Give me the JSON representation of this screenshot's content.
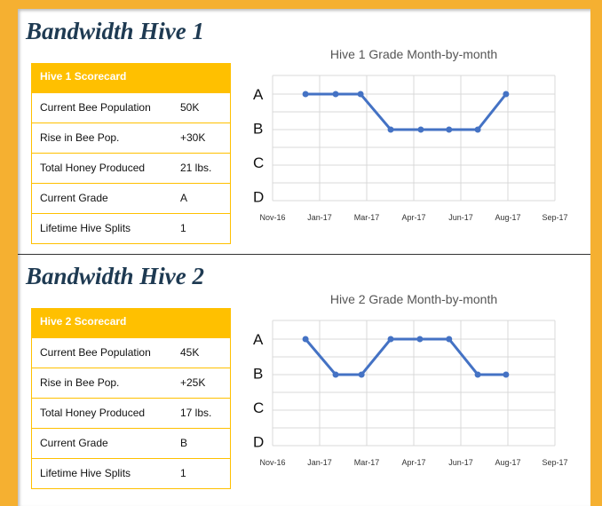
{
  "colors": {
    "background": "#f5b031",
    "header": "#ffc000",
    "title": "#1e3a52",
    "line": "#4472c4"
  },
  "hives": [
    {
      "title": "Bandwidth Hive 1",
      "scorecard": {
        "header": "Hive 1 Scorecard",
        "rows": [
          {
            "label": "Current Bee Population",
            "value": "50K"
          },
          {
            "label": "Rise in Bee Pop.",
            "value": "+30K"
          },
          {
            "label": "Total Honey Produced",
            "value": "21 lbs."
          },
          {
            "label": "Current Grade",
            "value": "A"
          },
          {
            "label": "Lifetime Hive Splits",
            "value": "1"
          }
        ]
      }
    },
    {
      "title": "Bandwidth Hive 2",
      "scorecard": {
        "header": "Hive 2 Scorecard",
        "rows": [
          {
            "label": "Current Bee Population",
            "value": "45K"
          },
          {
            "label": "Rise in Bee Pop.",
            "value": "+25K"
          },
          {
            "label": "Total Honey Produced",
            "value": "17 lbs."
          },
          {
            "label": "Current Grade",
            "value": "B"
          },
          {
            "label": "Lifetime Hive Splits",
            "value": "1"
          }
        ]
      }
    }
  ],
  "chart_data": [
    {
      "type": "line",
      "title": "Hive 1 Grade Month-by-month",
      "x_ticks": [
        "Nov-16",
        "Jan-17",
        "Mar-17",
        "Apr-17",
        "Jun-17",
        "Aug-17",
        "Sep-17"
      ],
      "y_categories": [
        "A",
        "B",
        "C",
        "D"
      ],
      "x": [
        0.7,
        1.34,
        1.87,
        2.51,
        3.15,
        3.75,
        4.36,
        4.96
      ],
      "values": [
        "A",
        "A",
        "A",
        "B",
        "B",
        "B",
        "B",
        "A"
      ],
      "grid": true
    },
    {
      "type": "line",
      "title": "Hive 2 Grade Month-by-month",
      "x_ticks": [
        "Nov-16",
        "Jan-17",
        "Mar-17",
        "Apr-17",
        "Jun-17",
        "Aug-17",
        "Sep-17"
      ],
      "y_categories": [
        "A",
        "B",
        "C",
        "D"
      ],
      "x": [
        0.7,
        1.34,
        1.89,
        2.51,
        3.13,
        3.75,
        4.36,
        4.96
      ],
      "values": [
        "A",
        "B",
        "B",
        "A",
        "A",
        "A",
        "B",
        "B"
      ],
      "grid": true
    }
  ]
}
